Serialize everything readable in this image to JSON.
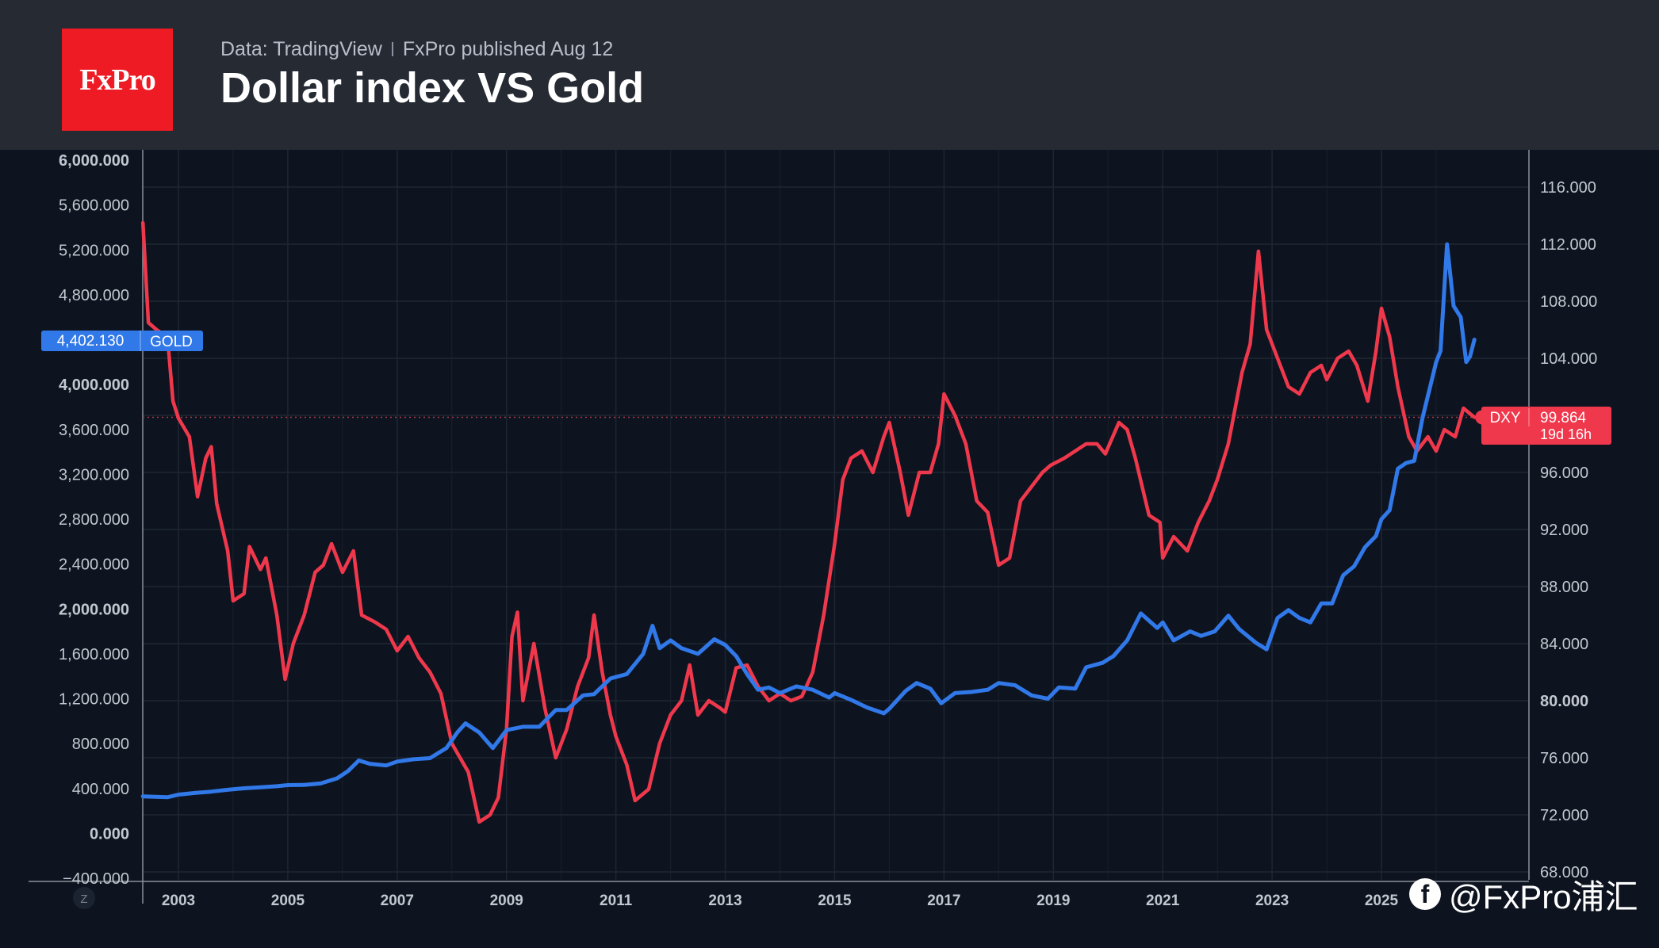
{
  "header": {
    "logo_text": "FxPro",
    "source_data": "Data: TradingView",
    "source_published": "FxPro published Aug 12",
    "title": "Dollar index VS Gold"
  },
  "watermark": {
    "icon": "facebook-icon",
    "handle": "@FxPro浦汇"
  },
  "colors": {
    "gold": "#3178e8",
    "dxy": "#f0384c",
    "background": "#0d1420",
    "header": "#262a33",
    "logo": "#ee1b24"
  },
  "chart_data": {
    "type": "line",
    "title": "Dollar index VS Gold",
    "x_tick_labels": [
      "2003",
      "2005",
      "2007",
      "2009",
      "2011",
      "2013",
      "2015",
      "2017",
      "2019",
      "2021",
      "2023",
      "2025"
    ],
    "left_axis": {
      "series": "GOLD",
      "range": [
        -400,
        6000
      ],
      "tick_labels": [
        "6,000.000",
        "5,600.000",
        "5,200.000",
        "4,800.000",
        "4,400.000",
        "4,000.000",
        "3,600.000",
        "3,200.000",
        "2,800.000",
        "2,400.000",
        "2,000.000",
        "1,600.000",
        "1,200.000",
        "800.000",
        "400.000",
        "0.000",
        "−400.000"
      ],
      "ticks": [
        6000,
        5600,
        5200,
        4800,
        4400,
        4000,
        3600,
        3200,
        2800,
        2400,
        2000,
        1600,
        1200,
        800,
        400,
        0,
        -400
      ]
    },
    "right_axis": {
      "series": "DXY",
      "range": [
        67.9,
        119.0
      ],
      "tick_labels": [
        "116.000",
        "112.000",
        "108.000",
        "104.000",
        "100.000",
        "96.000",
        "92.000",
        "88.000",
        "84.000",
        "80.000",
        "76.000",
        "72.000",
        "68.000"
      ],
      "ticks": [
        116,
        112,
        108,
        104,
        100,
        96,
        92,
        88,
        84,
        80,
        76,
        72,
        68
      ]
    },
    "price_labels": {
      "gold": {
        "value": "4,402.130",
        "name": "GOLD"
      },
      "dxy": {
        "value": "99.864",
        "name": "DXY",
        "countdown": "19d 16h"
      }
    },
    "series": [
      {
        "name": "GOLD",
        "axis": "left",
        "points": [
          [
            2002.35,
            330
          ],
          [
            2002.8,
            322
          ],
          [
            2003.0,
            345
          ],
          [
            2003.3,
            360
          ],
          [
            2003.6,
            372
          ],
          [
            2003.9,
            388
          ],
          [
            2004.2,
            402
          ],
          [
            2004.5,
            410
          ],
          [
            2004.8,
            420
          ],
          [
            2005.0,
            430
          ],
          [
            2005.3,
            432
          ],
          [
            2005.6,
            445
          ],
          [
            2005.9,
            490
          ],
          [
            2006.1,
            555
          ],
          [
            2006.3,
            650
          ],
          [
            2006.5,
            620
          ],
          [
            2006.8,
            605
          ],
          [
            2007.0,
            640
          ],
          [
            2007.3,
            660
          ],
          [
            2007.6,
            670
          ],
          [
            2007.9,
            760
          ],
          [
            2008.1,
            900
          ],
          [
            2008.25,
            980
          ],
          [
            2008.5,
            900
          ],
          [
            2008.75,
            760
          ],
          [
            2009.0,
            920
          ],
          [
            2009.3,
            950
          ],
          [
            2009.6,
            950
          ],
          [
            2009.9,
            1100
          ],
          [
            2010.1,
            1100
          ],
          [
            2010.4,
            1230
          ],
          [
            2010.6,
            1240
          ],
          [
            2010.9,
            1380
          ],
          [
            2011.2,
            1420
          ],
          [
            2011.5,
            1600
          ],
          [
            2011.67,
            1850
          ],
          [
            2011.8,
            1650
          ],
          [
            2012.0,
            1720
          ],
          [
            2012.2,
            1650
          ],
          [
            2012.5,
            1600
          ],
          [
            2012.8,
            1730
          ],
          [
            2013.0,
            1680
          ],
          [
            2013.2,
            1580
          ],
          [
            2013.4,
            1420
          ],
          [
            2013.6,
            1280
          ],
          [
            2013.8,
            1300
          ],
          [
            2014.0,
            1250
          ],
          [
            2014.3,
            1310
          ],
          [
            2014.6,
            1280
          ],
          [
            2014.9,
            1210
          ],
          [
            2015.0,
            1250
          ],
          [
            2015.3,
            1190
          ],
          [
            2015.6,
            1120
          ],
          [
            2015.9,
            1070
          ],
          [
            2016.0,
            1110
          ],
          [
            2016.3,
            1270
          ],
          [
            2016.5,
            1340
          ],
          [
            2016.75,
            1290
          ],
          [
            2016.95,
            1160
          ],
          [
            2017.2,
            1250
          ],
          [
            2017.5,
            1260
          ],
          [
            2017.8,
            1280
          ],
          [
            2018.0,
            1340
          ],
          [
            2018.3,
            1320
          ],
          [
            2018.6,
            1230
          ],
          [
            2018.9,
            1200
          ],
          [
            2019.1,
            1300
          ],
          [
            2019.4,
            1290
          ],
          [
            2019.6,
            1480
          ],
          [
            2019.9,
            1520
          ],
          [
            2020.1,
            1580
          ],
          [
            2020.35,
            1720
          ],
          [
            2020.6,
            1960
          ],
          [
            2020.9,
            1830
          ],
          [
            2021.0,
            1880
          ],
          [
            2021.2,
            1720
          ],
          [
            2021.5,
            1800
          ],
          [
            2021.7,
            1760
          ],
          [
            2021.95,
            1800
          ],
          [
            2022.2,
            1940
          ],
          [
            2022.4,
            1820
          ],
          [
            2022.7,
            1700
          ],
          [
            2022.9,
            1640
          ],
          [
            2023.1,
            1920
          ],
          [
            2023.3,
            1990
          ],
          [
            2023.5,
            1920
          ],
          [
            2023.7,
            1880
          ],
          [
            2023.9,
            2050
          ],
          [
            2024.1,
            2050
          ],
          [
            2024.3,
            2300
          ],
          [
            2024.5,
            2380
          ],
          [
            2024.7,
            2550
          ],
          [
            2024.9,
            2650
          ],
          [
            2025.0,
            2800
          ],
          [
            2025.15,
            2880
          ],
          [
            2025.3,
            3250
          ],
          [
            2025.45,
            3300
          ],
          [
            2025.6,
            3320
          ],
          [
            2025.75,
            3700
          ],
          [
            2025.9,
            4000
          ],
          [
            2026.0,
            4200
          ],
          [
            2026.08,
            4300
          ],
          [
            2026.2,
            5250
          ],
          [
            2026.32,
            4700
          ],
          [
            2026.45,
            4600
          ],
          [
            2026.55,
            4200
          ],
          [
            2026.62,
            4250
          ],
          [
            2026.7,
            4400
          ]
        ]
      },
      {
        "name": "DXY",
        "axis": "right",
        "points": [
          [
            2002.35,
            113.5
          ],
          [
            2002.45,
            106.5
          ],
          [
            2002.6,
            106.0
          ],
          [
            2002.8,
            105.5
          ],
          [
            2002.9,
            101.0
          ],
          [
            2003.0,
            99.8
          ],
          [
            2003.2,
            98.5
          ],
          [
            2003.35,
            94.3
          ],
          [
            2003.5,
            97.0
          ],
          [
            2003.6,
            97.8
          ],
          [
            2003.7,
            93.8
          ],
          [
            2003.9,
            90.5
          ],
          [
            2004.0,
            87.0
          ],
          [
            2004.2,
            87.5
          ],
          [
            2004.3,
            90.8
          ],
          [
            2004.5,
            89.2
          ],
          [
            2004.6,
            90.0
          ],
          [
            2004.8,
            86.0
          ],
          [
            2004.95,
            81.5
          ],
          [
            2005.1,
            84.0
          ],
          [
            2005.3,
            86.0
          ],
          [
            2005.5,
            89.0
          ],
          [
            2005.65,
            89.5
          ],
          [
            2005.8,
            91.0
          ],
          [
            2006.0,
            89.0
          ],
          [
            2006.2,
            90.5
          ],
          [
            2006.35,
            86.0
          ],
          [
            2006.6,
            85.5
          ],
          [
            2006.8,
            85.0
          ],
          [
            2007.0,
            83.5
          ],
          [
            2007.2,
            84.5
          ],
          [
            2007.4,
            83.0
          ],
          [
            2007.6,
            82.0
          ],
          [
            2007.8,
            80.5
          ],
          [
            2008.0,
            77.0
          ],
          [
            2008.3,
            75.0
          ],
          [
            2008.5,
            71.5
          ],
          [
            2008.7,
            72.0
          ],
          [
            2008.85,
            73.2
          ],
          [
            2009.0,
            78.0
          ],
          [
            2009.1,
            84.5
          ],
          [
            2009.2,
            86.2
          ],
          [
            2009.3,
            80.0
          ],
          [
            2009.5,
            84.0
          ],
          [
            2009.7,
            79.5
          ],
          [
            2009.9,
            76.0
          ],
          [
            2010.1,
            78.0
          ],
          [
            2010.3,
            81.0
          ],
          [
            2010.5,
            83.0
          ],
          [
            2010.6,
            86.0
          ],
          [
            2010.75,
            82.0
          ],
          [
            2010.9,
            79.0
          ],
          [
            2011.0,
            77.5
          ],
          [
            2011.2,
            75.5
          ],
          [
            2011.35,
            73.0
          ],
          [
            2011.6,
            73.8
          ],
          [
            2011.8,
            77.0
          ],
          [
            2012.0,
            79.0
          ],
          [
            2012.2,
            80.0
          ],
          [
            2012.35,
            82.5
          ],
          [
            2012.5,
            79.0
          ],
          [
            2012.7,
            80.0
          ],
          [
            2012.9,
            79.5
          ],
          [
            2013.0,
            79.2
          ],
          [
            2013.2,
            82.3
          ],
          [
            2013.4,
            82.5
          ],
          [
            2013.6,
            81.0
          ],
          [
            2013.8,
            80.0
          ],
          [
            2014.0,
            80.5
          ],
          [
            2014.2,
            80.0
          ],
          [
            2014.4,
            80.3
          ],
          [
            2014.6,
            82.0
          ],
          [
            2014.8,
            86.0
          ],
          [
            2015.0,
            91.0
          ],
          [
            2015.15,
            95.5
          ],
          [
            2015.3,
            97.0
          ],
          [
            2015.5,
            97.5
          ],
          [
            2015.7,
            96.0
          ],
          [
            2015.9,
            98.5
          ],
          [
            2016.0,
            99.5
          ],
          [
            2016.2,
            96.0
          ],
          [
            2016.35,
            93.0
          ],
          [
            2016.55,
            96.0
          ],
          [
            2016.75,
            96.0
          ],
          [
            2016.9,
            98.0
          ],
          [
            2017.0,
            101.5
          ],
          [
            2017.2,
            100.0
          ],
          [
            2017.4,
            98.0
          ],
          [
            2017.6,
            94.0
          ],
          [
            2017.8,
            93.2
          ],
          [
            2018.0,
            89.5
          ],
          [
            2018.2,
            90.0
          ],
          [
            2018.4,
            94.0
          ],
          [
            2018.6,
            95.0
          ],
          [
            2018.8,
            96.0
          ],
          [
            2018.95,
            96.5
          ],
          [
            2019.2,
            97.0
          ],
          [
            2019.4,
            97.5
          ],
          [
            2019.6,
            98.0
          ],
          [
            2019.8,
            98.0
          ],
          [
            2019.95,
            97.3
          ],
          [
            2020.2,
            99.5
          ],
          [
            2020.35,
            99.0
          ],
          [
            2020.5,
            97.0
          ],
          [
            2020.75,
            93.0
          ],
          [
            2020.95,
            92.5
          ],
          [
            2021.0,
            90.0
          ],
          [
            2021.2,
            91.5
          ],
          [
            2021.45,
            90.5
          ],
          [
            2021.65,
            92.5
          ],
          [
            2021.85,
            94.0
          ],
          [
            2022.0,
            95.5
          ],
          [
            2022.2,
            98.0
          ],
          [
            2022.45,
            103.0
          ],
          [
            2022.6,
            105.0
          ],
          [
            2022.75,
            111.5
          ],
          [
            2022.9,
            106.0
          ],
          [
            2023.1,
            104.0
          ],
          [
            2023.3,
            102.0
          ],
          [
            2023.5,
            101.5
          ],
          [
            2023.7,
            103.0
          ],
          [
            2023.9,
            103.5
          ],
          [
            2024.0,
            102.5
          ],
          [
            2024.2,
            104.0
          ],
          [
            2024.4,
            104.5
          ],
          [
            2024.55,
            103.5
          ],
          [
            2024.75,
            101.0
          ],
          [
            2024.9,
            104.5
          ],
          [
            2025.0,
            107.5
          ],
          [
            2025.15,
            105.5
          ],
          [
            2025.3,
            102.0
          ],
          [
            2025.5,
            98.5
          ],
          [
            2025.65,
            97.5
          ],
          [
            2025.85,
            98.5
          ],
          [
            2026.0,
            97.5
          ],
          [
            2026.15,
            99.0
          ],
          [
            2026.35,
            98.5
          ],
          [
            2026.5,
            100.5
          ],
          [
            2026.7,
            99.86
          ]
        ]
      }
    ],
    "grid": true
  }
}
